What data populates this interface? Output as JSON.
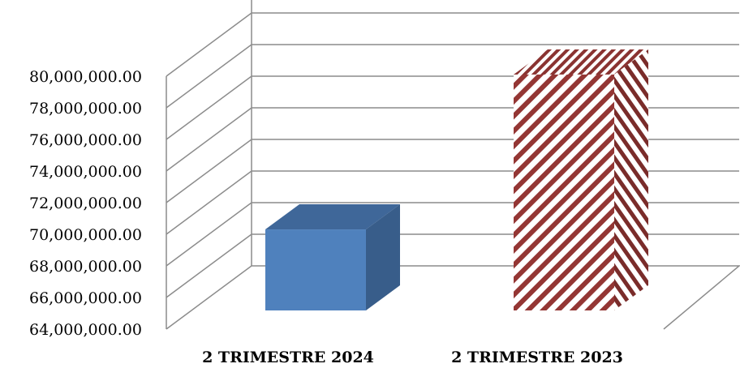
{
  "chart_data": {
    "type": "bar",
    "style": "3d-column",
    "categories": [
      "2 TRIMESTRE 2024",
      "2 TRIMESTRE 2023"
    ],
    "values": [
      70100000,
      79900000
    ],
    "ylim": [
      64000000,
      80000000
    ],
    "yticks": [
      "64,000,000.00",
      "66,000,000.00",
      "68,000,000.00",
      "70,000,000.00",
      "72,000,000.00",
      "74,000,000.00",
      "76,000,000.00",
      "78,000,000.00",
      "80,000,000.00"
    ],
    "grid": true,
    "legend": "none",
    "colors": {
      "bar_2024_front": "#4f81bd",
      "bar_2024_side": "#385d8a",
      "bar_2024_top": "#3f6799",
      "bar_2023_stripe": "#943634",
      "bar_2023_bg": "#ffffff"
    }
  }
}
